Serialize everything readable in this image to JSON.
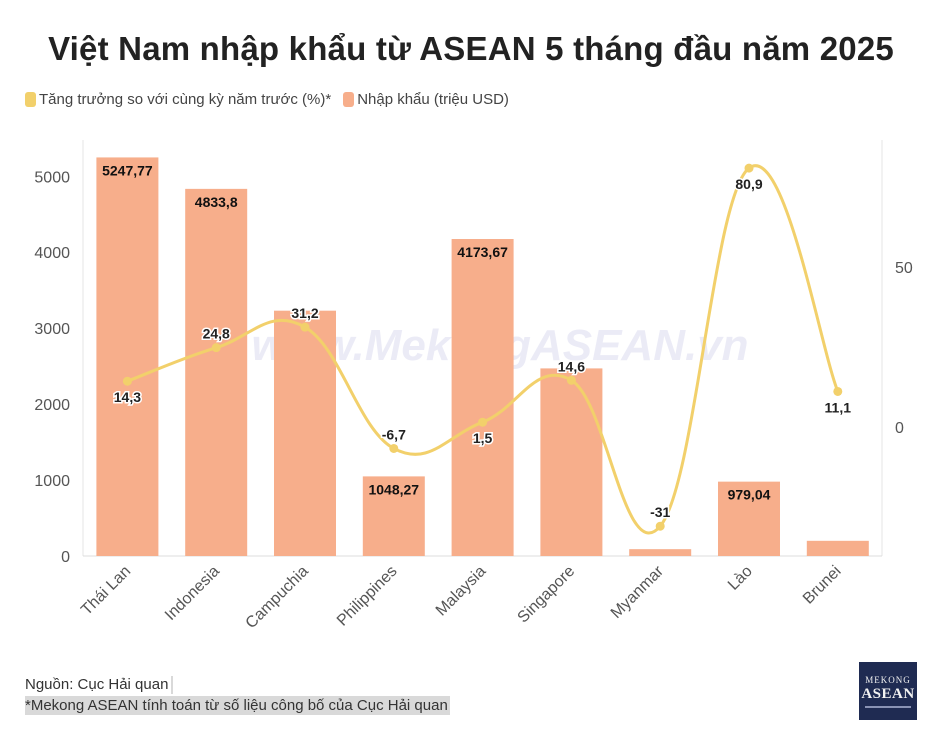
{
  "title": "Việt Nam nhập khẩu từ ASEAN 5 tháng đầu năm 2025",
  "legend": {
    "growth_label": "Tăng trưởng so với cùng kỳ năm trước (%)*",
    "import_label": "Nhập khẩu (triệu USD)",
    "growth_color": "#f2d06b",
    "import_color": "#f7ae8b"
  },
  "watermark": "www.MekongASEAN.vn",
  "source": "Nguồn: Cục Hải quan",
  "footnote": "*Mekong ASEAN tính toán từ số liệu công bố của Cục Hải quan",
  "logo": {
    "line1": "MEKONG",
    "line2": "ASEAN"
  },
  "chart_data": {
    "type": "bar",
    "title": "Việt Nam nhập khẩu từ ASEAN 5 tháng đầu năm 2025",
    "categories": [
      "Thái Lan",
      "Indonesia",
      "Campuchia",
      "Philippines",
      "Malaysia",
      "Singapore",
      "Myanmar",
      "Lào",
      "Brunei"
    ],
    "series": [
      {
        "name": "Nhập khẩu (triệu USD)",
        "type": "bar",
        "axis": "left",
        "values": [
          5247.77,
          4833.8,
          3230,
          1048.27,
          4173.67,
          2470,
          90,
          979.04,
          200
        ],
        "labels": [
          "5247,77",
          "4833,8",
          "",
          "1048,27",
          "4173,67",
          "",
          "",
          "979,04",
          ""
        ]
      },
      {
        "name": "Tăng trưởng so với cùng kỳ năm trước (%)*",
        "type": "line",
        "axis": "right",
        "values": [
          14.3,
          24.8,
          31.2,
          -6.7,
          1.5,
          14.6,
          -31,
          80.9,
          11.1
        ],
        "labels": [
          "14,3",
          "24,8",
          "31,2",
          "-6,7",
          "1,5",
          "14,6",
          "-31",
          "80,9",
          "11,1"
        ]
      }
    ],
    "y_left": {
      "ticks": [
        0,
        1000,
        2000,
        3000,
        4000,
        5000
      ],
      "tick_labels": [
        "0",
        "1000",
        "2000",
        "3000",
        "4000",
        "5000"
      ],
      "range": [
        0,
        5300
      ]
    },
    "y_right": {
      "ticks": [
        0,
        50
      ],
      "tick_labels": [
        "0",
        "50"
      ],
      "range": [
        -40,
        85
      ]
    },
    "grid": false,
    "legend_position": "top-left"
  }
}
